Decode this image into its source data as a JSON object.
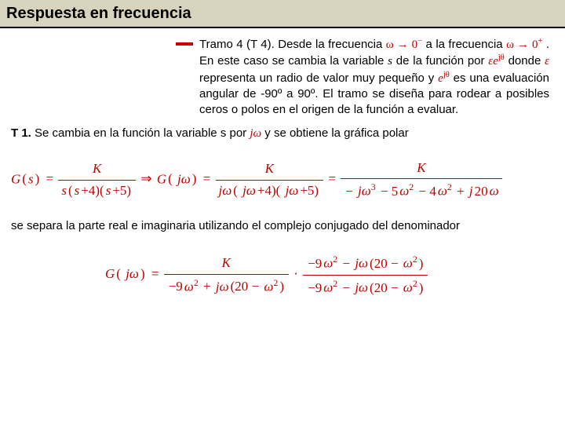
{
  "title": "Respuesta en frecuencia",
  "bullet": {
    "part1": "Tramo 4 (T 4). Desde la frecuencia ",
    "math1": "ω → 0⁻",
    "part2": " a la frecuencia ",
    "math2": "ω → 0⁺",
    "part3": ". En este caso se cambia la variable ",
    "s": "s",
    "part4": " de la función por ",
    "math3": "εe^{jθ}",
    "part5": " donde ",
    "eps": "ε",
    "part6": " representa un radio de valor muy pequeño y ",
    "math4": "e^{jθ}",
    "part7": " es una evaluación angular de -90º a 90º. El tramo se diseña para rodear a posibles ceros o polos en el origen de la función a evaluar."
  },
  "t1": {
    "label": "T 1.",
    "part1": " Se cambia en la función la variable s por ",
    "math": "jω",
    "part2": " y se obtiene la gráfica polar"
  },
  "formula1": {
    "G": "G",
    "s": "s",
    "K": "K",
    "jw": "jω",
    "lhs_den": "s(s+4)(s+5)",
    "mid_den": "jω( jω+4)( jω+5)",
    "rhs_num": "K",
    "rhs_den": "− jω³ − 5ω² − 4ω² + j20ω"
  },
  "sep_text": "se separa la parte real e imaginaria utilizando el complejo conjugado del denominador",
  "formula2": {
    "lhs": "G( jω) =",
    "num1": "K",
    "den1": "−9ω² + jω(20 − ω²)",
    "dot": "·",
    "num2": "−9ω² − jω(20 − ω²)",
    "den2": "−9ω² − jω(20 − ω²)"
  },
  "colors": {
    "titlebar_bg": "#d7d3bd",
    "titlebar_border": "#000000",
    "text": "#000000",
    "math": "#c00000",
    "bullet": "#cc0000"
  }
}
